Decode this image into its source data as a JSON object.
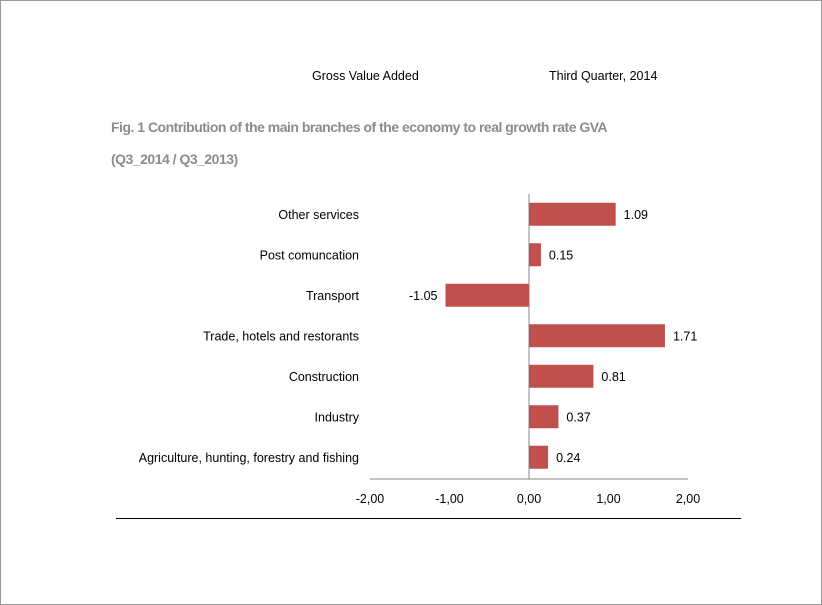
{
  "header": {
    "left": "Gross Value Added",
    "right": "Third Quarter, 2014"
  },
  "chart_data": {
    "type": "bar",
    "orientation": "horizontal",
    "title": "Fig. 1 Contribution of the main branches of the economy to real growth rate GVA",
    "subtitle": "(Q3_2014 / Q3_2013)",
    "categories": [
      "Other services",
      "Post comuncation",
      "Transport",
      "Trade, hotels and restorants",
      "Construction",
      "Industry",
      "Agriculture, hunting, forestry and fishing"
    ],
    "values": [
      1.09,
      0.15,
      -1.05,
      1.71,
      0.81,
      0.37,
      0.24
    ],
    "value_labels": [
      "1.09",
      "0.15",
      "-1.05",
      "1.71",
      "0.81",
      "0.37",
      "0.24"
    ],
    "xlim": [
      -2,
      2
    ],
    "xticks": [
      -2,
      -1,
      0,
      1,
      2
    ],
    "xtick_labels": [
      "-2,00",
      "-1,00",
      "0,00",
      "1,00",
      "2,00"
    ],
    "bar_color": "#c0504d",
    "grid": false,
    "legend": "none"
  }
}
